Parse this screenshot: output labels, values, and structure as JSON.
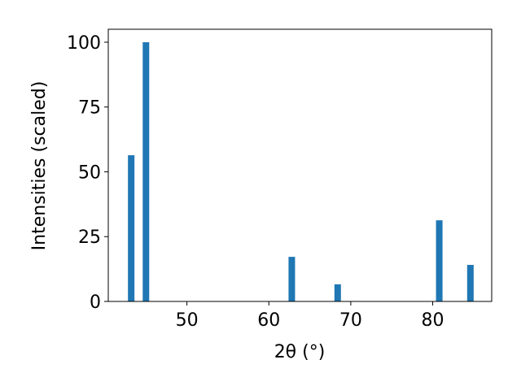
{
  "chart_data": {
    "type": "bar",
    "x": [
      43.2,
      45.0,
      62.8,
      68.4,
      80.8,
      84.6
    ],
    "values": [
      56.4,
      100,
      17.2,
      6.6,
      31.3,
      14.1
    ],
    "color": "#1f77b4",
    "xlabel": "2θ (°)",
    "ylabel": "Intensities (scaled)",
    "xlim": [
      40.4,
      87.2
    ],
    "xticks": [
      50,
      60,
      70,
      80
    ],
    "ylim": [
      0,
      105
    ],
    "yticks": [
      0,
      25,
      50,
      75,
      100
    ],
    "grid": false
  }
}
